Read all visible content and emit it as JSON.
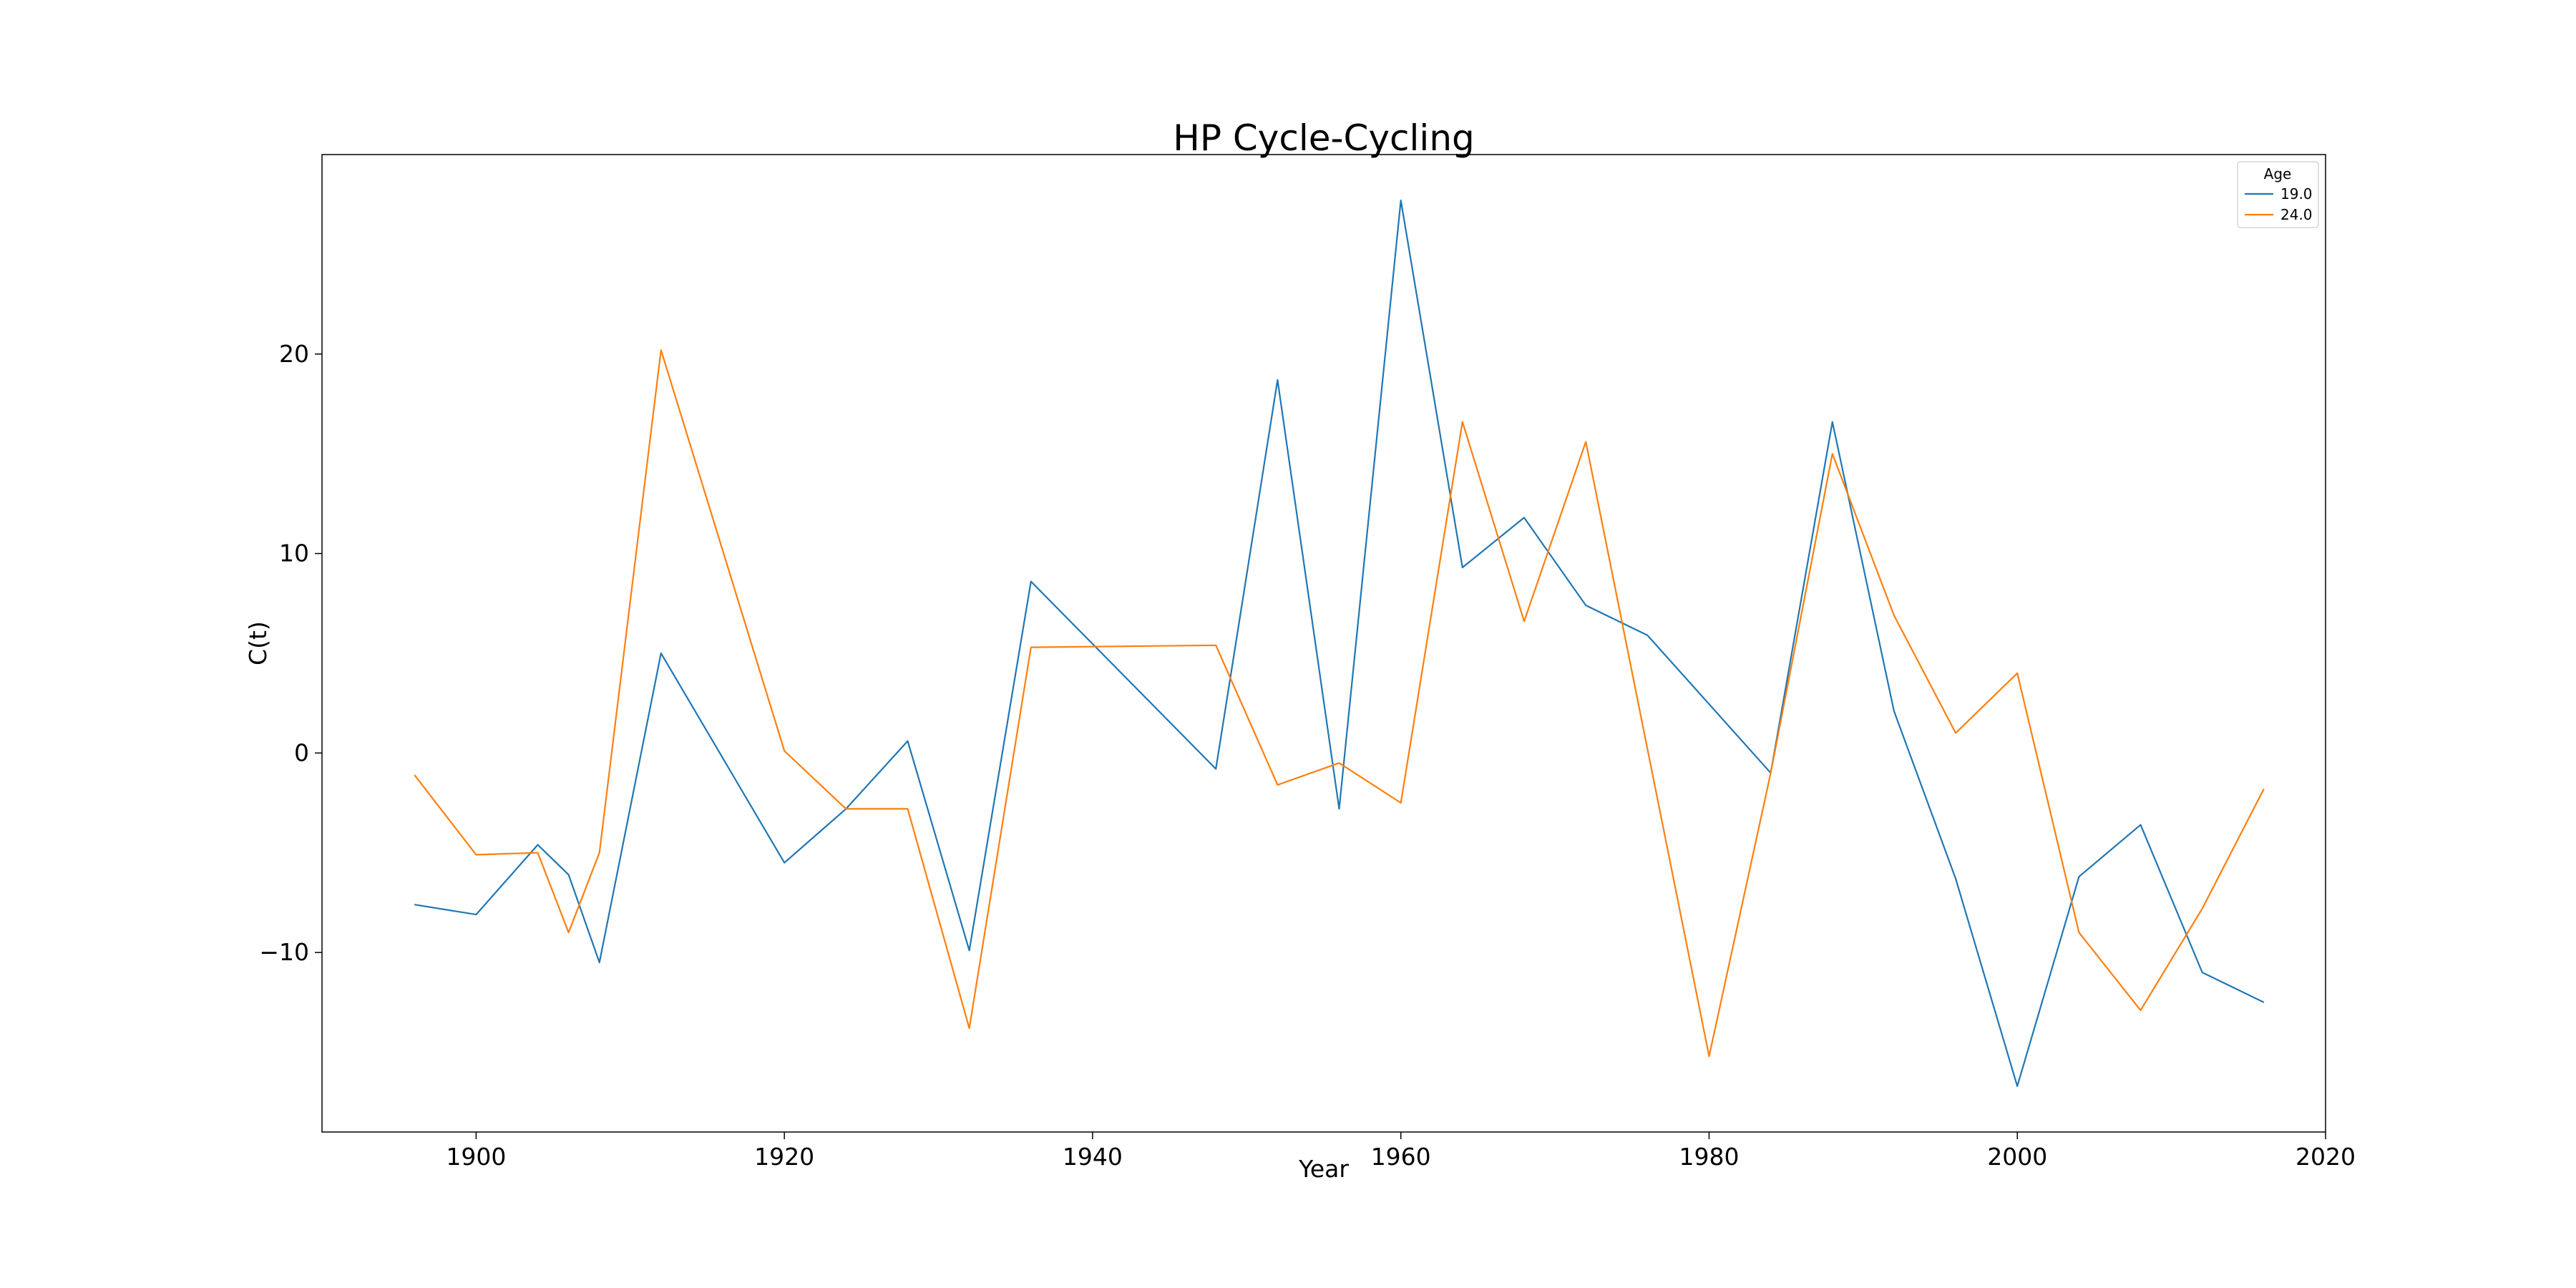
{
  "chart_data": {
    "type": "line",
    "title": "HP Cycle-Cycling",
    "xlabel": "Year",
    "ylabel": "C(t)",
    "xlim": [
      1890,
      2020
    ],
    "ylim": [
      -19,
      30
    ],
    "xticks": [
      1900,
      1920,
      1940,
      1960,
      1980,
      2000,
      2020
    ],
    "yticks": [
      -10,
      0,
      10,
      20
    ],
    "ytick_labels": [
      "−10",
      "0",
      "10",
      "20"
    ],
    "grid": false,
    "legend": {
      "title": "Age",
      "placement": "top-right"
    },
    "series": [
      {
        "name": "19.0",
        "color": "#1f77b4",
        "x": [
          1896,
          1900,
          1904,
          1906,
          1908,
          1912,
          1920,
          1924,
          1928,
          1932,
          1936,
          1948,
          1952,
          1956,
          1960,
          1964,
          1968,
          1972,
          1976,
          1984,
          1988,
          1992,
          1996,
          2000,
          2004,
          2008,
          2012,
          2016
        ],
        "y": [
          -7.6,
          -8.1,
          -4.6,
          -6.1,
          -10.5,
          5.0,
          -5.5,
          -2.8,
          0.6,
          -9.9,
          8.6,
          -0.8,
          18.7,
          -2.8,
          27.7,
          9.3,
          11.8,
          7.4,
          5.9,
          -1.0,
          16.6,
          2.1,
          -6.3,
          -16.7,
          -6.2,
          -3.6,
          -11.0,
          -12.5
        ]
      },
      {
        "name": "24.0",
        "color": "#ff7f0e",
        "x": [
          1896,
          1900,
          1904,
          1906,
          1908,
          1912,
          1920,
          1924,
          1928,
          1932,
          1936,
          1948,
          1952,
          1956,
          1960,
          1964,
          1968,
          1972,
          1980,
          1984,
          1988,
          1992,
          1996,
          2000,
          2004,
          2008,
          2012,
          2016
        ],
        "y": [
          -1.1,
          -5.1,
          -5.0,
          -9.0,
          -5.0,
          20.2,
          0.1,
          -2.8,
          -2.8,
          -13.8,
          5.3,
          5.4,
          -1.6,
          -0.5,
          -2.5,
          16.6,
          6.6,
          15.6,
          -15.2,
          -1.0,
          15.0,
          6.9,
          1.0,
          4.0,
          -9.0,
          -12.9,
          -7.8,
          -1.8
        ]
      }
    ]
  }
}
